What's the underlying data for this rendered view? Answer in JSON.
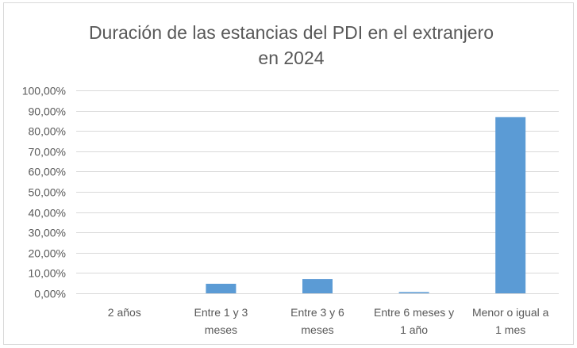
{
  "chart_data": {
    "type": "bar",
    "title_lines": [
      "Duración de las estancias del PDI en el extranjero",
      "en 2024"
    ],
    "categories": [
      [
        "2 años"
      ],
      [
        "Entre 1 y 3",
        "meses"
      ],
      [
        "Entre 3 y 6",
        "meses"
      ],
      [
        "Entre 6 meses y",
        "1 año"
      ],
      [
        "Menor o igual a",
        "1 mes"
      ]
    ],
    "values": [
      0.0,
      4.7,
      7.0,
      0.6,
      86.8
    ],
    "ylim": [
      0,
      100
    ],
    "y_ticks": [
      0,
      10,
      20,
      30,
      40,
      50,
      60,
      70,
      80,
      90,
      100
    ],
    "y_tick_labels": [
      "0,00%",
      "10,00%",
      "20,00%",
      "30,00%",
      "40,00%",
      "50,00%",
      "60,00%",
      "70,00%",
      "80,00%",
      "90,00%",
      "100,00%"
    ],
    "grid": true,
    "legend": "none",
    "bar_color": "#5b9bd5",
    "grid_color": "#d9d9d9"
  }
}
